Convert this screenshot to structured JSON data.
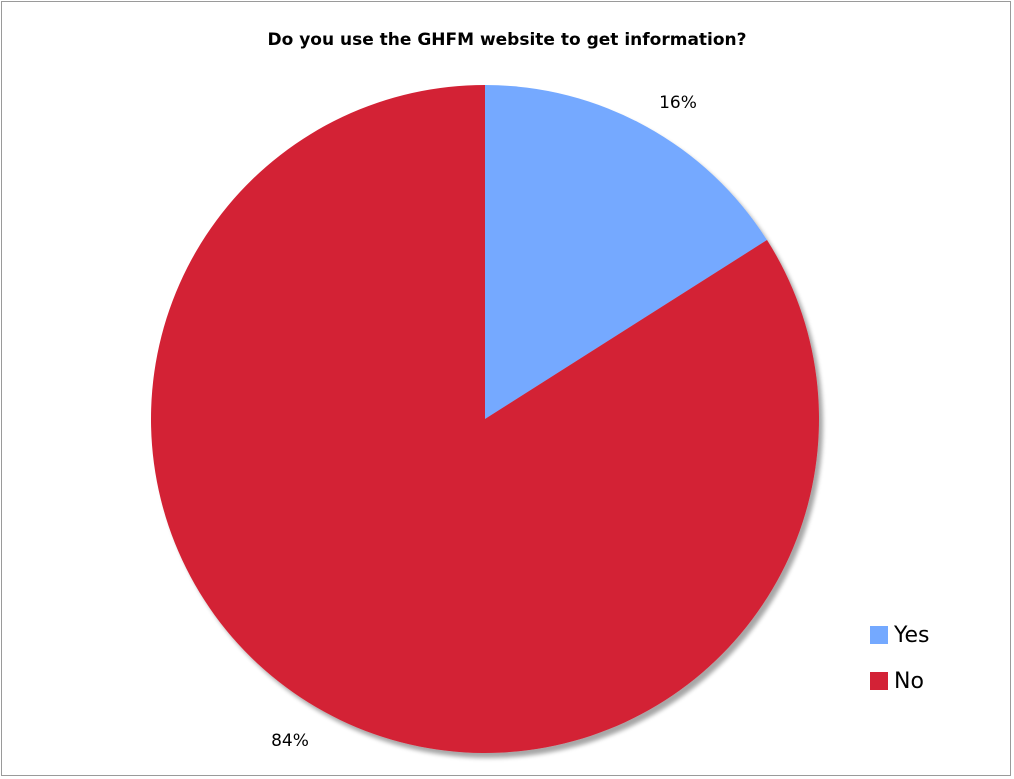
{
  "chart_data": {
    "type": "pie",
    "title": "Do you use the GHFM website to get information?",
    "slices": [
      {
        "label": "Yes",
        "value": 16,
        "display": "16%",
        "color": "#74a9ff"
      },
      {
        "label": "No",
        "value": 84,
        "display": "84%",
        "color": "#d32236"
      }
    ],
    "legend_position": "bottom-right",
    "start_angle_deg": 0,
    "direction": "clockwise"
  }
}
